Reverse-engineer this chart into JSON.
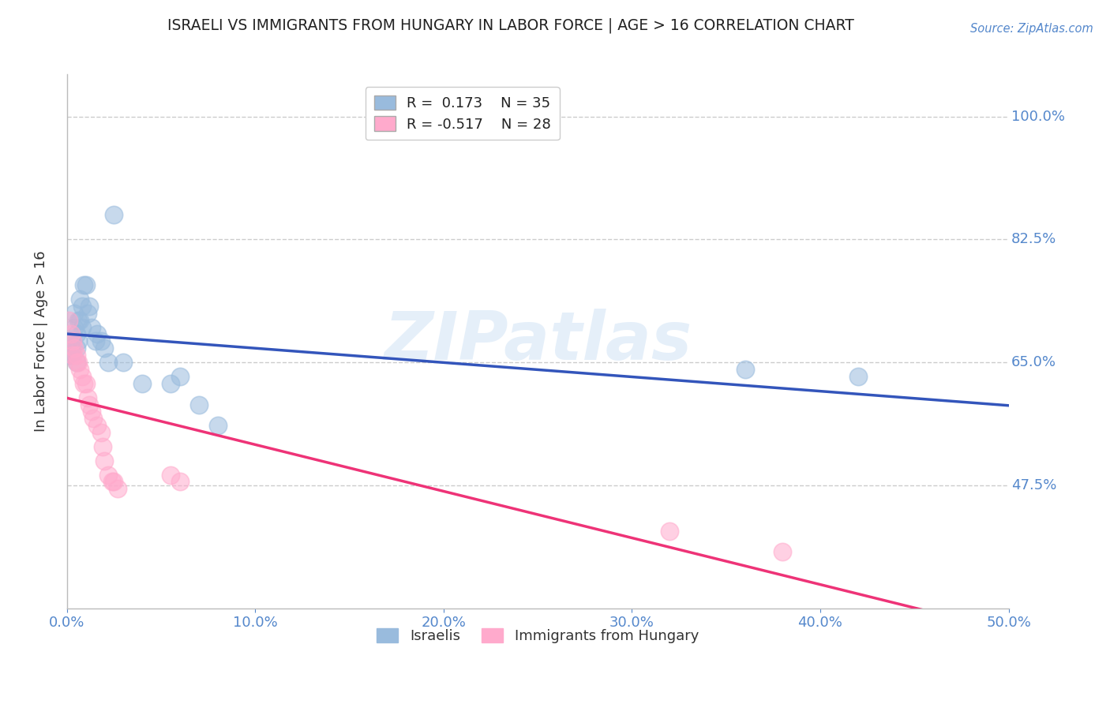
{
  "title": "ISRAELI VS IMMIGRANTS FROM HUNGARY IN LABOR FORCE | AGE > 16 CORRELATION CHART",
  "source": "Source: ZipAtlas.com",
  "ylabel": "In Labor Force | Age > 16",
  "xlim": [
    0.0,
    0.5
  ],
  "ylim": [
    0.3,
    1.06
  ],
  "xticks": [
    0.0,
    0.1,
    0.2,
    0.3,
    0.4,
    0.5
  ],
  "xticklabels": [
    "0.0%",
    "10.0%",
    "20.0%",
    "30.0%",
    "40.0%",
    "50.0%"
  ],
  "yticks": [
    0.475,
    0.65,
    0.825,
    1.0
  ],
  "yticklabels": [
    "47.5%",
    "65.0%",
    "82.5%",
    "100.0%"
  ],
  "blue_color": "#99BBDD",
  "pink_color": "#FFAACC",
  "line_blue": "#3355BB",
  "line_pink": "#EE3377",
  "label1": "Israelis",
  "label2": "Immigrants from Hungary",
  "watermark": "ZIPatlas",
  "israelis_x": [
    0.001,
    0.002,
    0.002,
    0.003,
    0.003,
    0.004,
    0.004,
    0.005,
    0.005,
    0.005,
    0.006,
    0.006,
    0.007,
    0.007,
    0.008,
    0.008,
    0.009,
    0.01,
    0.011,
    0.012,
    0.013,
    0.015,
    0.016,
    0.018,
    0.02,
    0.022,
    0.025,
    0.03,
    0.04,
    0.055,
    0.06,
    0.07,
    0.08,
    0.36,
    0.42
  ],
  "israelis_y": [
    0.66,
    0.67,
    0.68,
    0.68,
    0.66,
    0.72,
    0.7,
    0.69,
    0.67,
    0.65,
    0.71,
    0.68,
    0.74,
    0.71,
    0.73,
    0.7,
    0.76,
    0.76,
    0.72,
    0.73,
    0.7,
    0.68,
    0.69,
    0.68,
    0.67,
    0.65,
    0.86,
    0.65,
    0.62,
    0.62,
    0.63,
    0.59,
    0.56,
    0.64,
    0.63
  ],
  "hungary_x": [
    0.001,
    0.002,
    0.003,
    0.003,
    0.004,
    0.005,
    0.005,
    0.006,
    0.007,
    0.008,
    0.009,
    0.01,
    0.011,
    0.012,
    0.013,
    0.014,
    0.016,
    0.018,
    0.019,
    0.02,
    0.022,
    0.024,
    0.025,
    0.027,
    0.055,
    0.06,
    0.32,
    0.38
  ],
  "hungary_y": [
    0.71,
    0.69,
    0.68,
    0.66,
    0.67,
    0.66,
    0.65,
    0.65,
    0.64,
    0.63,
    0.62,
    0.62,
    0.6,
    0.59,
    0.58,
    0.57,
    0.56,
    0.55,
    0.53,
    0.51,
    0.49,
    0.48,
    0.48,
    0.47,
    0.49,
    0.48,
    0.41,
    0.38
  ],
  "background_color": "#FFFFFF",
  "grid_color": "#CCCCCC",
  "title_color": "#222222",
  "axis_label_color": "#333333",
  "tick_color": "#5588CC"
}
